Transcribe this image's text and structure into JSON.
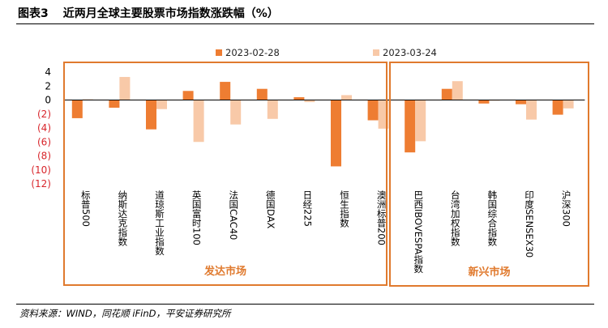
{
  "figure": {
    "number": "图表3",
    "title": "近两月全球主要股票市场指数涨跌幅（%）",
    "source": "资料来源：WIND，同花顺 iFinD，平安证券研究所"
  },
  "colors": {
    "series_1": "#EE7D32",
    "series_2": "#F8C9A8",
    "frame": "#E07A2E",
    "negative_tick": "#D8262C"
  },
  "chart_data": {
    "type": "bar",
    "categories": [
      "标普500",
      "纳斯达克指数",
      "道琼斯工业指数",
      "英国富时100",
      "法国CAC40",
      "德国DAX",
      "日经225",
      "恒生指数",
      "澳洲标普200",
      "巴西IBOVESPA指数",
      "台湾加权指数",
      "韩国综合指数",
      "印度SENSEX30",
      "沪深300"
    ],
    "series": [
      {
        "name": "2023-02-28",
        "values": [
          -2.6,
          -1.1,
          -4.2,
          1.3,
          2.6,
          1.6,
          0.4,
          -9.5,
          -2.9,
          -7.5,
          1.6,
          -0.5,
          -0.6,
          -2.1
        ]
      },
      {
        "name": "2023-03-24",
        "values": [
          0.1,
          3.3,
          -1.3,
          -6.0,
          -3.5,
          -2.7,
          -0.3,
          0.7,
          -4.1,
          -5.9,
          2.7,
          -0.1,
          -2.8,
          -1.2
        ]
      }
    ],
    "yticks": [
      4,
      2,
      0,
      -2,
      -4,
      -6,
      -8,
      -10,
      -12
    ],
    "ytick_labels": [
      "4",
      "2",
      "0",
      "(2)",
      "(4)",
      "(6)",
      "(8)",
      "(10)",
      "(12)"
    ],
    "ylim": [
      -12,
      4
    ],
    "legend_position": "top",
    "groups": [
      {
        "label": "发达市场",
        "count": 9
      },
      {
        "label": "新兴市场",
        "count": 5
      }
    ]
  }
}
